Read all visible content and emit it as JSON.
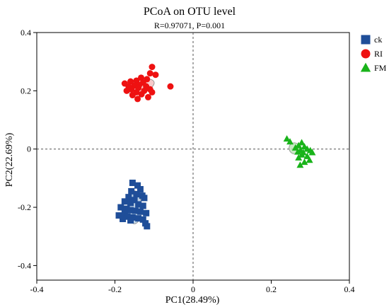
{
  "chart_data": {
    "type": "scatter",
    "title": "PCoA on OTU level",
    "subtitle": "R=0.97071, P=0.001",
    "xlabel": "PC1(28.49%)",
    "ylabel": "PC2(22.69%)",
    "xlim": [
      -0.4,
      0.4
    ],
    "ylim": [
      -0.45,
      0.4
    ],
    "xticks": [
      -0.4,
      -0.2,
      0,
      0.2,
      0.4
    ],
    "yticks": [
      -0.4,
      -0.2,
      0,
      0.2,
      0.4
    ],
    "xtick_labels": [
      "-0.4",
      "-0.2",
      "0",
      "0.2",
      "0.4"
    ],
    "ytick_labels": [
      "-0.4",
      "-0.2",
      "0",
      "0.2",
      "0.4"
    ],
    "grid": false,
    "reference_lines": {
      "x": 0,
      "y": 0,
      "style": "dashed"
    },
    "legend_placement": "top-right",
    "series": [
      {
        "name": "ck",
        "marker": "square",
        "color": "#1f4e99",
        "ellipse_fill": "#a9c4dc",
        "ellipse": {
          "cx": -0.15,
          "cy": -0.2,
          "rx": 0.018,
          "ry": 0.057
        },
        "points": [
          [
            -0.155,
            -0.116
          ],
          [
            -0.142,
            -0.125
          ],
          [
            -0.135,
            -0.138
          ],
          [
            -0.158,
            -0.145
          ],
          [
            -0.145,
            -0.155
          ],
          [
            -0.13,
            -0.16
          ],
          [
            -0.165,
            -0.165
          ],
          [
            -0.125,
            -0.168
          ],
          [
            -0.15,
            -0.175
          ],
          [
            -0.175,
            -0.18
          ],
          [
            -0.16,
            -0.185
          ],
          [
            -0.14,
            -0.19
          ],
          [
            -0.128,
            -0.195
          ],
          [
            -0.185,
            -0.2
          ],
          [
            -0.17,
            -0.205
          ],
          [
            -0.16,
            -0.21
          ],
          [
            -0.148,
            -0.212
          ],
          [
            -0.135,
            -0.215
          ],
          [
            -0.175,
            -0.22
          ],
          [
            -0.12,
            -0.22
          ],
          [
            -0.19,
            -0.228
          ],
          [
            -0.168,
            -0.232
          ],
          [
            -0.155,
            -0.235
          ],
          [
            -0.14,
            -0.238
          ],
          [
            -0.18,
            -0.24
          ],
          [
            -0.128,
            -0.242
          ],
          [
            -0.16,
            -0.245
          ],
          [
            -0.122,
            -0.255
          ],
          [
            -0.118,
            -0.265
          ]
        ]
      },
      {
        "name": "RI",
        "marker": "circle",
        "color": "#ee1111",
        "ellipse_fill": "#f4b8b8",
        "ellipse": {
          "cx": -0.135,
          "cy": 0.215,
          "rx": 0.037,
          "ry": 0.022,
          "angle": -18
        },
        "points": [
          [
            -0.105,
            0.282
          ],
          [
            -0.11,
            0.26
          ],
          [
            -0.096,
            0.255
          ],
          [
            -0.133,
            0.245
          ],
          [
            -0.118,
            0.24
          ],
          [
            -0.145,
            0.235
          ],
          [
            -0.16,
            0.232
          ],
          [
            -0.175,
            0.225
          ],
          [
            -0.128,
            0.228
          ],
          [
            -0.138,
            0.22
          ],
          [
            -0.15,
            0.218
          ],
          [
            -0.165,
            0.215
          ],
          [
            -0.12,
            0.215
          ],
          [
            -0.058,
            0.215
          ],
          [
            -0.14,
            0.21
          ],
          [
            -0.158,
            0.205
          ],
          [
            -0.17,
            0.2
          ],
          [
            -0.125,
            0.2
          ],
          [
            -0.11,
            0.205
          ],
          [
            -0.145,
            0.195
          ],
          [
            -0.132,
            0.188
          ],
          [
            -0.155,
            0.185
          ],
          [
            -0.115,
            0.178
          ],
          [
            -0.142,
            0.172
          ],
          [
            -0.105,
            0.195
          ]
        ]
      },
      {
        "name": "FM",
        "marker": "triangle",
        "color": "#19b31a",
        "ellipse_fill": "#b3e2ae",
        "ellipse": {
          "cx": 0.26,
          "cy": 0.002,
          "rx": 0.014,
          "ry": 0.02,
          "angle": -45
        },
        "points": [
          [
            0.24,
            0.035
          ],
          [
            0.248,
            0.025
          ],
          [
            0.278,
            0.022
          ],
          [
            0.27,
            0.012
          ],
          [
            0.285,
            0.008
          ],
          [
            0.262,
            0.004
          ],
          [
            0.292,
            0.0
          ],
          [
            0.275,
            -0.004
          ],
          [
            0.3,
            -0.005
          ],
          [
            0.268,
            -0.01
          ],
          [
            0.282,
            -0.012
          ],
          [
            0.305,
            -0.012
          ],
          [
            0.278,
            -0.02
          ],
          [
            0.292,
            -0.025
          ],
          [
            0.27,
            -0.03
          ],
          [
            0.298,
            -0.038
          ],
          [
            0.285,
            -0.045
          ],
          [
            0.274,
            -0.055
          ]
        ]
      }
    ]
  }
}
